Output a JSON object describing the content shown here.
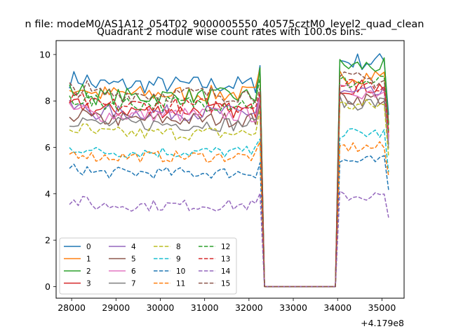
{
  "chart_data": {
    "type": "line",
    "suptitle": "n file: modeM0/AS1A12_054T02_9000005550_40575cztM0_level2_quad_clean",
    "title": "Quadrant 2 module wise count rates with 100.0s bins.",
    "xlabel": "",
    "ylabel": "",
    "offset_text": "+4.179e8",
    "x_offset": 417900000,
    "xlim": [
      27650,
      35500
    ],
    "ylim": [
      -0.5,
      10.6
    ],
    "x_ticks": [
      28000,
      29000,
      30000,
      31000,
      32000,
      33000,
      34000,
      35000
    ],
    "y_ticks": [
      0,
      2,
      4,
      6,
      8,
      10
    ],
    "grid": false,
    "legend_position": "lower-left",
    "legend_columns": 4,
    "gap_interval": [
      32250,
      34050
    ],
    "x_start": 27950,
    "x_end": 35150,
    "bin_step": 100,
    "series": [
      {
        "name": "0",
        "color": "#1f77b4",
        "dash": "solid",
        "level1": 8.7,
        "level2": 9.7
      },
      {
        "name": "1",
        "color": "#ff7f0e",
        "dash": "solid",
        "level1": 8.3,
        "level2": 9.1
      },
      {
        "name": "2",
        "color": "#2ca02c",
        "dash": "solid",
        "level1": 8.2,
        "level2": 9.5
      },
      {
        "name": "3",
        "color": "#d62728",
        "dash": "solid",
        "level1": 7.6,
        "level2": 8.6
      },
      {
        "name": "4",
        "color": "#9467bd",
        "dash": "solid",
        "level1": 7.5,
        "level2": 8.3
      },
      {
        "name": "5",
        "color": "#8c564b",
        "dash": "solid",
        "level1": 7.2,
        "level2": 8.1
      },
      {
        "name": "6",
        "color": "#e377c2",
        "dash": "solid",
        "level1": 7.4,
        "level2": 8.4
      },
      {
        "name": "7",
        "color": "#7f7f7f",
        "dash": "solid",
        "level1": 7.0,
        "level2": 7.9
      },
      {
        "name": "8",
        "color": "#bcbd22",
        "dash": "dashed",
        "level1": 6.6,
        "level2": 7.8
      },
      {
        "name": "9",
        "color": "#17becf",
        "dash": "dashed",
        "level1": 5.8,
        "level2": 6.6
      },
      {
        "name": "10",
        "color": "#1f77b4",
        "dash": "dashed",
        "level1": 4.9,
        "level2": 5.4
      },
      {
        "name": "11",
        "color": "#ff7f0e",
        "dash": "dashed",
        "level1": 5.6,
        "level2": 6.0
      },
      {
        "name": "12",
        "color": "#2ca02c",
        "dash": "dashed",
        "level1": 7.9,
        "level2": 8.8
      },
      {
        "name": "13",
        "color": "#d62728",
        "dash": "dashed",
        "level1": 7.8,
        "level2": 8.7
      },
      {
        "name": "14",
        "color": "#9467bd",
        "dash": "dashed",
        "level1": 3.5,
        "level2": 3.9
      },
      {
        "name": "15",
        "color": "#8c564b",
        "dash": "dashed",
        "level1": 8.3,
        "level2": 8.9
      }
    ]
  }
}
